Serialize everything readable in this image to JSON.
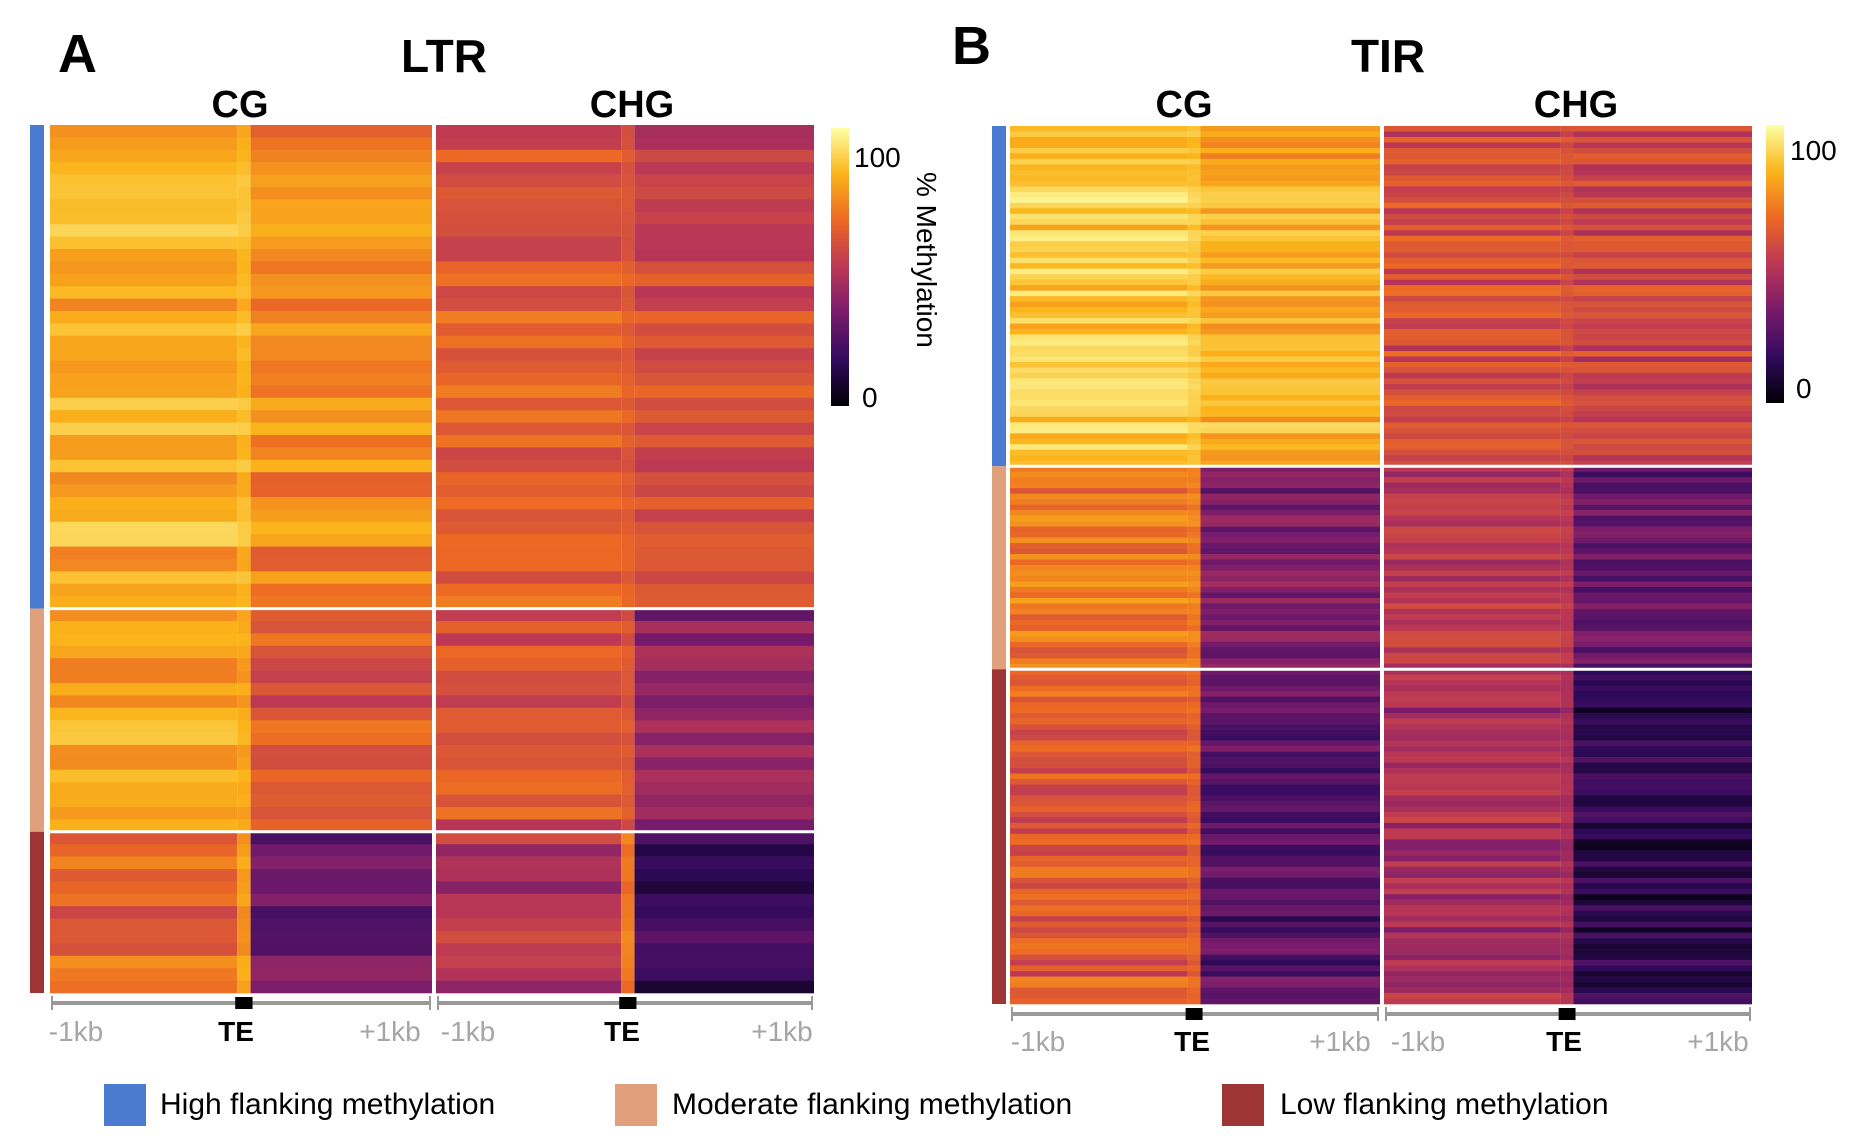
{
  "chart_data": [
    {
      "type": "heatmap",
      "panel_letter": "A",
      "title": "LTR",
      "contexts": [
        "CG",
        "CHG"
      ],
      "x_ticks": {
        "left": "-1kb",
        "center": "TE",
        "right": "+1kb"
      },
      "groups": [
        {
          "name": "High flanking methylation",
          "fraction": 0.56
        },
        {
          "name": "Moderate flanking methylation",
          "fraction": 0.255
        },
        {
          "name": "Low flanking methylation",
          "fraction": 0.185
        }
      ],
      "approx_mean_methylation": {
        "CG": [
          {
            "upstream": 82,
            "te": 85,
            "downstream": 74
          },
          {
            "upstream": 78,
            "te": 80,
            "downstream": 60
          },
          {
            "upstream": 65,
            "te": 78,
            "downstream": 30
          }
        ],
        "CHG": [
          {
            "upstream": 62,
            "te": 62,
            "downstream": 56
          },
          {
            "upstream": 58,
            "te": 60,
            "downstream": 38
          },
          {
            "upstream": 48,
            "te": 70,
            "downstream": 18
          }
        ]
      },
      "colorbar": {
        "min": "0",
        "max": "100",
        "label": "% Methylation"
      }
    },
    {
      "type": "heatmap",
      "panel_letter": "B",
      "title": "TIR",
      "contexts": [
        "CG",
        "CHG"
      ],
      "x_ticks": {
        "left": "-1kb",
        "center": "TE",
        "right": "+1kb"
      },
      "groups": [
        {
          "name": "High flanking methylation",
          "fraction": 0.39
        },
        {
          "name": "Moderate flanking methylation",
          "fraction": 0.23
        },
        {
          "name": "Low flanking methylation",
          "fraction": 0.38
        }
      ],
      "approx_mean_methylation": {
        "CG": [
          {
            "upstream": 88,
            "te": 88,
            "downstream": 82
          },
          {
            "upstream": 70,
            "te": 72,
            "downstream": 35
          },
          {
            "upstream": 62,
            "te": 65,
            "downstream": 26
          }
        ],
        "CHG": [
          {
            "upstream": 58,
            "te": 58,
            "downstream": 55
          },
          {
            "upstream": 50,
            "te": 50,
            "downstream": 28
          },
          {
            "upstream": 45,
            "te": 45,
            "downstream": 14
          }
        ]
      },
      "colorbar": {
        "min": "0",
        "max": "100"
      }
    }
  ],
  "legend": [
    {
      "label": "High flanking methylation",
      "color": "#4a7bd0"
    },
    {
      "label": "Moderate flanking methylation",
      "color": "#e0a07c"
    },
    {
      "label": "Low flanking methylation",
      "color": "#9e3535"
    }
  ],
  "colormap": [
    "#000004",
    "#320a5e",
    "#781b6c",
    "#bb3755",
    "#ec6824",
    "#fbb41a",
    "#fcffa4"
  ]
}
